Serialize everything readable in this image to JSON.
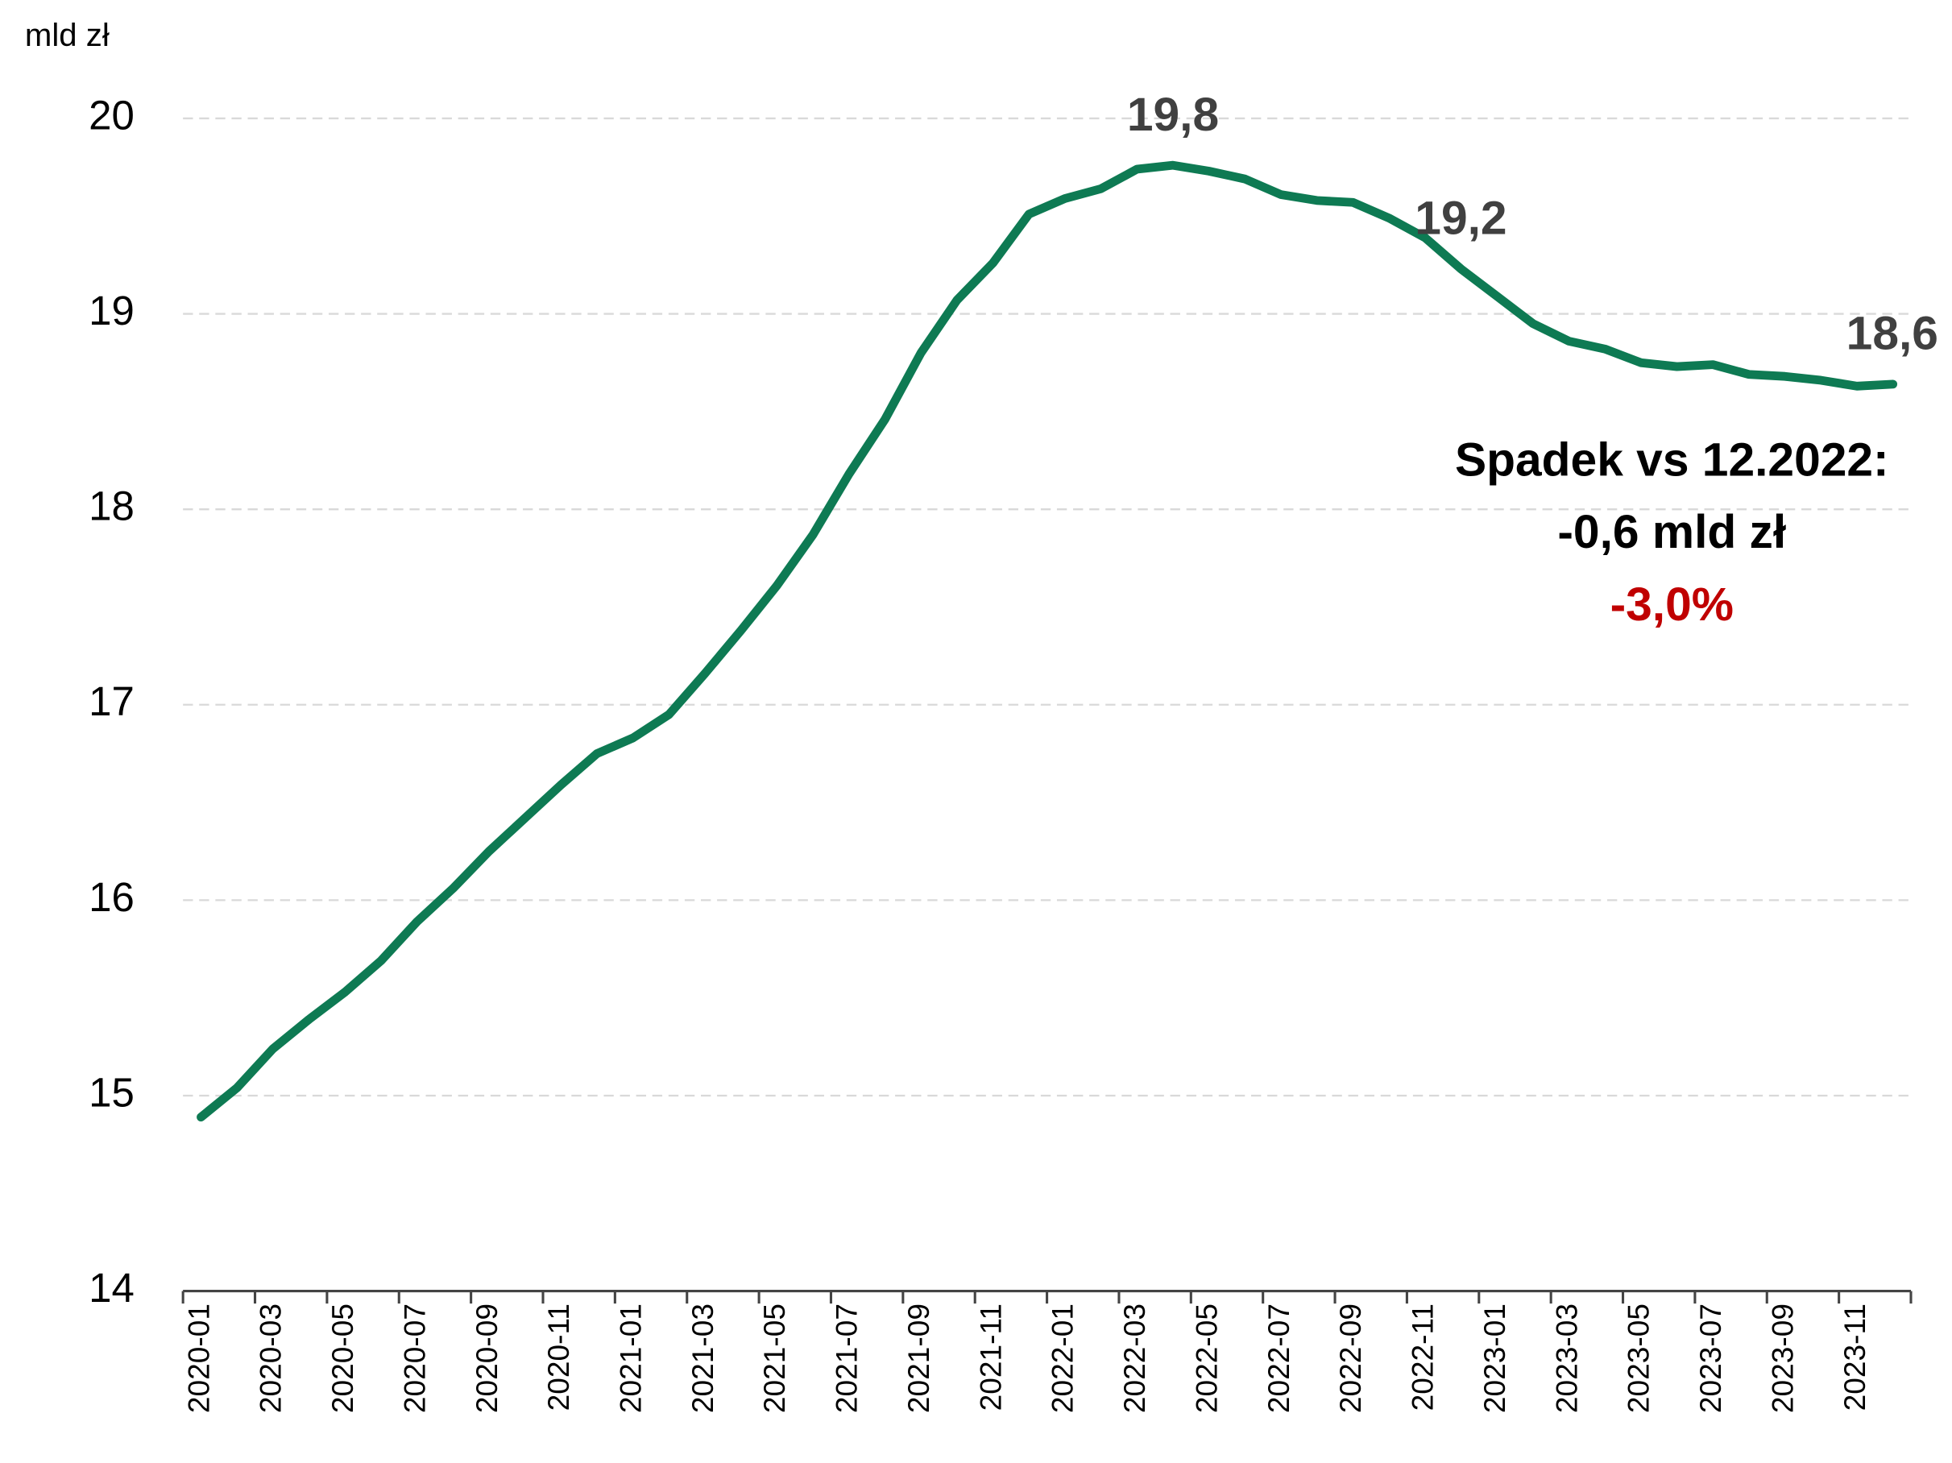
{
  "chart_data": {
    "type": "line",
    "y_unit": "mld zł",
    "categories": [
      "2020-01",
      null,
      "2020-03",
      null,
      "2020-05",
      null,
      "2020-07",
      null,
      "2020-09",
      null,
      "2020-11",
      null,
      "2021-01",
      null,
      "2021-03",
      null,
      "2021-05",
      null,
      "2021-07",
      null,
      "2021-09",
      null,
      "2021-11",
      null,
      "2022-01",
      null,
      "2022-03",
      null,
      "2022-05",
      null,
      "2022-07",
      null,
      "2022-09",
      null,
      "2022-11",
      null,
      "2023-01",
      null,
      "2023-03",
      null,
      "2023-05",
      null,
      "2023-07",
      null,
      "2023-09",
      null,
      "2023-11",
      null
    ],
    "series": [
      {
        "color": "#0e7a53",
        "values": [
          14.89,
          15.04,
          15.24,
          15.39,
          15.53,
          15.69,
          15.89,
          16.06,
          16.25,
          16.42,
          16.59,
          16.75,
          16.83,
          16.95,
          17.16,
          17.38,
          17.61,
          17.87,
          18.18,
          18.46,
          18.8,
          19.07,
          19.26,
          19.51,
          19.59,
          19.64,
          19.74,
          19.76,
          19.73,
          19.69,
          19.61,
          19.58,
          19.57,
          19.49,
          19.39,
          19.23,
          19.09,
          18.95,
          18.86,
          18.82,
          18.75,
          18.73,
          18.74,
          18.69,
          18.68,
          18.66,
          18.63,
          18.64
        ],
        "value_labels": [
          null,
          null,
          null,
          null,
          null,
          null,
          null,
          null,
          null,
          null,
          null,
          null,
          null,
          null,
          null,
          null,
          null,
          null,
          null,
          null,
          null,
          null,
          null,
          null,
          null,
          null,
          null,
          "19,8",
          null,
          null,
          null,
          null,
          null,
          null,
          null,
          "19,2",
          null,
          null,
          null,
          null,
          null,
          null,
          null,
          null,
          null,
          null,
          null,
          "18,6"
        ]
      }
    ],
    "ylim": [
      14,
      20
    ],
    "yticks": [
      14,
      15,
      16,
      17,
      18,
      19,
      20
    ],
    "grid": true,
    "annotations": [
      {
        "text": "Spadek vs 12.2022:",
        "color": "#000000"
      },
      {
        "text": "-0,6 mld zł",
        "color": "#000000"
      },
      {
        "text": "-3,0%",
        "color": "#c00000"
      }
    ]
  }
}
